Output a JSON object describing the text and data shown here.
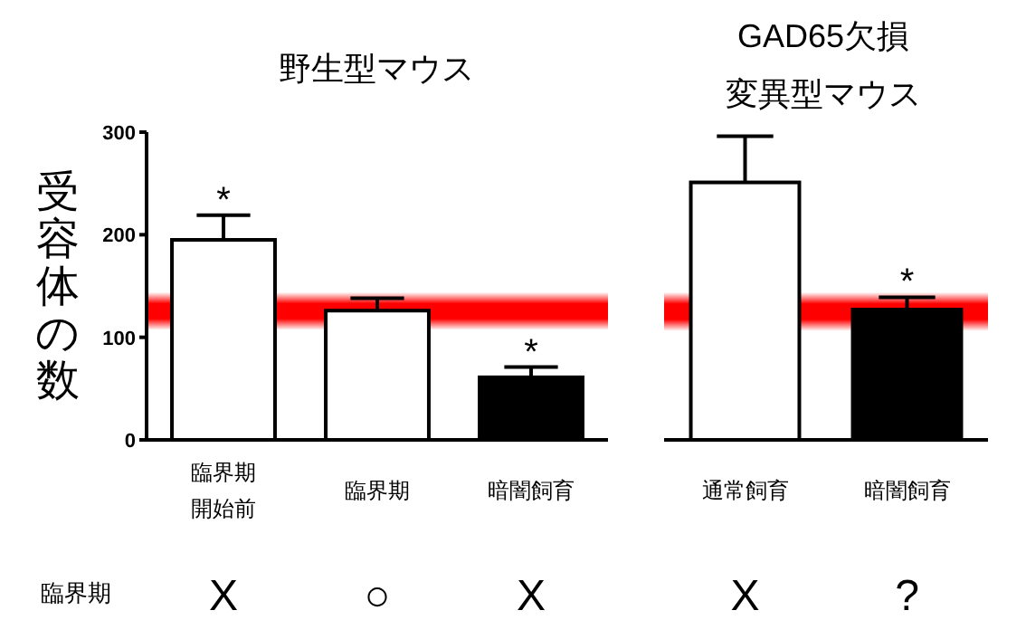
{
  "chart_data": [
    {
      "type": "bar",
      "title": "野生型マウス",
      "ylabel": "受容体の数",
      "categories": [
        "臨界期開始前",
        "臨界期",
        "暗闇飼育"
      ],
      "values": [
        195,
        126,
        61
      ],
      "errors": [
        [
          195,
          219
        ],
        [
          126,
          138
        ],
        [
          61,
          71
        ]
      ],
      "colors": [
        "#ffffff",
        "#ffffff",
        "#000000"
      ],
      "ylim": [
        0,
        300
      ],
      "yticks": [
        0,
        100,
        200,
        300
      ],
      "bands": [
        {
          "axis": "y",
          "from": 107,
          "to": 144,
          "color": "#ff0000"
        }
      ],
      "annotations": [
        {
          "text": "*",
          "x": "臨界期開始前",
          "y": 219
        },
        {
          "text": "*",
          "x": "暗闇飼育",
          "y": 71
        },
        "臨界期",
        "X",
        "○",
        "X"
      ]
    },
    {
      "type": "bar",
      "title": "GAD65欠損変異型マウス",
      "categories": [
        "通常飼育",
        "暗闇飼育"
      ],
      "values": [
        251,
        127
      ],
      "errors": [
        [
          251,
          296
        ],
        [
          127,
          139
        ]
      ],
      "colors": [
        "#ffffff",
        "#000000"
      ],
      "ylim": [
        0,
        300
      ],
      "tick_labels": "x",
      "bands": [
        {
          "axis": "y",
          "from": 106,
          "to": 144,
          "color": "#ff0000"
        }
      ],
      "annotations": [
        {
          "text": "*",
          "x": "暗闇飼育",
          "y": 139
        },
        "X",
        "?"
      ]
    }
  ]
}
